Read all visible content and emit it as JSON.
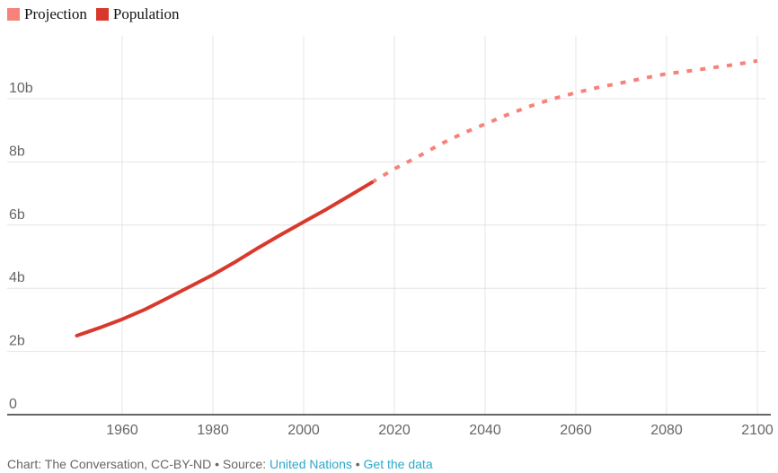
{
  "legend": [
    {
      "label": "Projection",
      "color": "#f7827a"
    },
    {
      "label": "Population",
      "color": "#d9392c"
    }
  ],
  "footer": {
    "prefix": "Chart: The Conversation, CC-BY-ND • Source: ",
    "source_link": "United Nations",
    "separator": " • ",
    "data_link": "Get the data"
  },
  "chart_data": {
    "type": "line",
    "xlim": [
      1940,
      2100
    ],
    "ylim": [
      0,
      12
    ],
    "x_ticks": [
      1960,
      1980,
      2000,
      2020,
      2040,
      2060,
      2080,
      2100
    ],
    "x_tick_labels": [
      "1960",
      "1980",
      "2000",
      "2020",
      "2040",
      "2060",
      "2080",
      "2100"
    ],
    "y_ticks": [
      0,
      2,
      4,
      6,
      8,
      10
    ],
    "y_tick_labels": [
      "0",
      "2b",
      "4b",
      "6b",
      "8b",
      "10b"
    ],
    "grid": true,
    "legend_position": "top-left",
    "series": [
      {
        "name": "Population",
        "color": "#d9392c",
        "dashed": false,
        "x": [
          1950,
          1955,
          1960,
          1965,
          1970,
          1975,
          1980,
          1985,
          1990,
          1995,
          2000,
          2005,
          2010,
          2015
        ],
        "y": [
          2.5,
          2.75,
          3.02,
          3.33,
          3.69,
          4.06,
          4.43,
          4.84,
          5.28,
          5.7,
          6.1,
          6.5,
          6.92,
          7.35
        ]
      },
      {
        "name": "Projection",
        "color": "#f7827a",
        "dashed": true,
        "x": [
          2015,
          2020,
          2025,
          2030,
          2035,
          2040,
          2045,
          2050,
          2055,
          2060,
          2065,
          2070,
          2075,
          2080,
          2085,
          2090,
          2095,
          2100
        ],
        "y": [
          7.35,
          7.78,
          8.15,
          8.55,
          8.9,
          9.2,
          9.5,
          9.77,
          10.0,
          10.19,
          10.36,
          10.5,
          10.65,
          10.79,
          10.88,
          10.98,
          11.08,
          11.2
        ]
      }
    ]
  }
}
